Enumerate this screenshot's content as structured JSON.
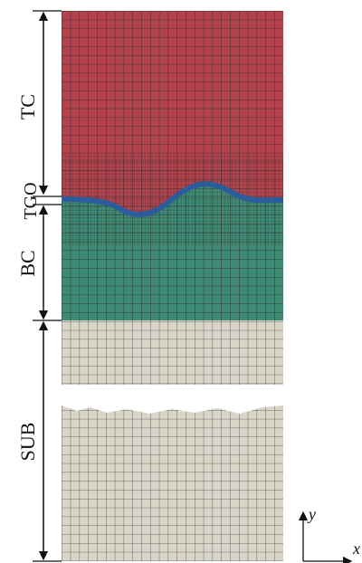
{
  "layers": {
    "tc": "TC",
    "tgo": "TGO",
    "bc": "BC",
    "sub": "SUB"
  },
  "axes": {
    "y": "y",
    "x": "x"
  }
}
